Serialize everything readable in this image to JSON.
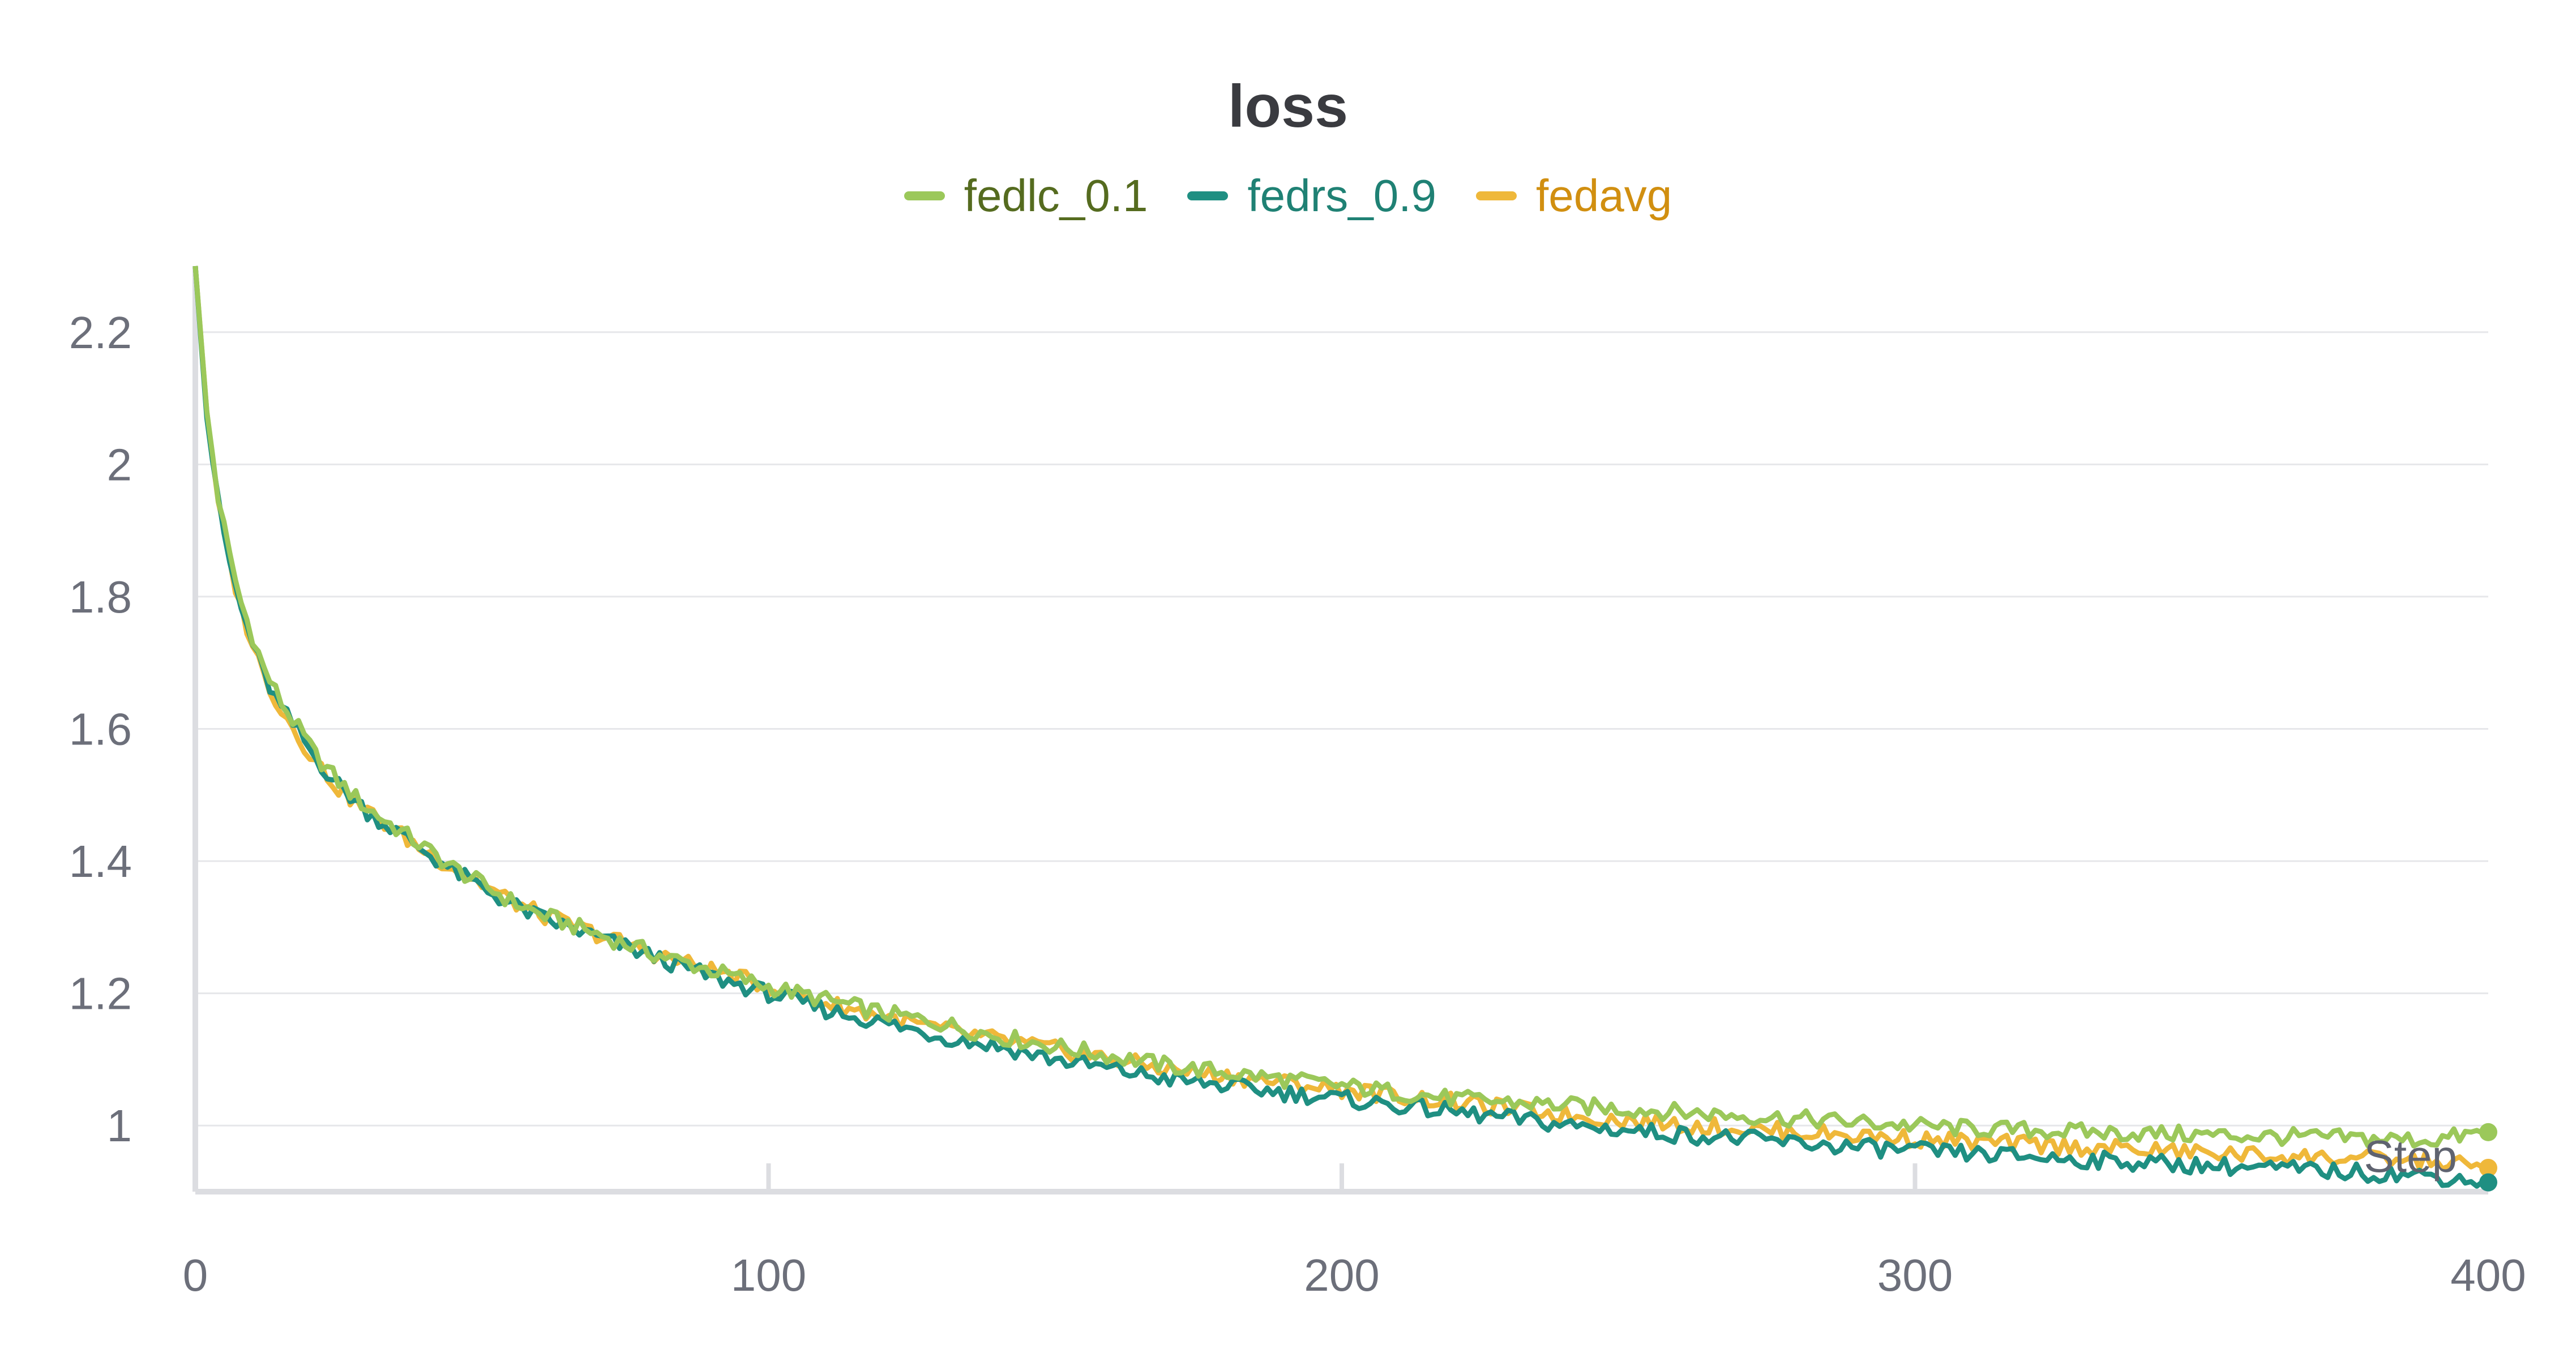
{
  "chart_data": {
    "type": "line",
    "title": "loss",
    "xlabel": "Step",
    "ylabel": "",
    "xlim": [
      0,
      400
    ],
    "ylim": [
      0.9,
      2.3
    ],
    "x_ticks": [
      0,
      100,
      200,
      300,
      400
    ],
    "x_tick_labels": [
      "0",
      "100",
      "200",
      "300",
      "400"
    ],
    "y_ticks": [
      1,
      1.2,
      1.4,
      1.6,
      1.8,
      2,
      2.2
    ],
    "y_tick_labels": [
      "1",
      "1.2",
      "1.4",
      "1.6",
      "1.8",
      "2",
      "2.2"
    ],
    "grid": true,
    "legend_position": "top-center",
    "x": [
      0,
      2,
      4,
      6,
      8,
      10,
      12,
      15,
      18,
      21,
      25,
      30,
      35,
      40,
      45,
      50,
      55,
      60,
      70,
      80,
      90,
      100,
      110,
      120,
      130,
      140,
      150,
      160,
      170,
      180,
      190,
      200,
      210,
      220,
      230,
      240,
      250,
      260,
      270,
      280,
      290,
      300,
      310,
      320,
      330,
      340,
      350,
      360,
      370,
      380,
      390,
      400
    ],
    "series": [
      {
        "name": "fedlc_0.1",
        "color": "#9bc85a",
        "label_color": "#556b1f",
        "values": [
          2.3,
          2.08,
          1.95,
          1.86,
          1.79,
          1.74,
          1.69,
          1.64,
          1.6,
          1.56,
          1.52,
          1.48,
          1.45,
          1.42,
          1.39,
          1.365,
          1.34,
          1.32,
          1.29,
          1.26,
          1.235,
          1.21,
          1.19,
          1.17,
          1.155,
          1.135,
          1.12,
          1.105,
          1.09,
          1.08,
          1.07,
          1.06,
          1.05,
          1.04,
          1.035,
          1.03,
          1.025,
          1.02,
          1.015,
          1.01,
          1.005,
          1.0,
          0.995,
          0.993,
          0.99,
          0.988,
          0.986,
          0.984,
          0.982,
          0.98,
          0.978,
          0.99
        ]
      },
      {
        "name": "fedrs_0.9",
        "color": "#1f8f82",
        "label_color": "#1f8174",
        "values": [
          2.3,
          2.07,
          1.94,
          1.85,
          1.78,
          1.73,
          1.68,
          1.63,
          1.595,
          1.555,
          1.515,
          1.475,
          1.445,
          1.415,
          1.385,
          1.36,
          1.335,
          1.315,
          1.285,
          1.255,
          1.225,
          1.2,
          1.175,
          1.155,
          1.135,
          1.12,
          1.1,
          1.085,
          1.07,
          1.06,
          1.05,
          1.04,
          1.03,
          1.02,
          1.01,
          1.0,
          0.993,
          0.986,
          0.98,
          0.973,
          0.967,
          0.962,
          0.957,
          0.953,
          0.948,
          0.944,
          0.94,
          0.936,
          0.932,
          0.928,
          0.924,
          0.914
        ]
      },
      {
        "name": "fedavg",
        "color": "#efb83a",
        "label_color": "#d18f10",
        "values": [
          2.3,
          2.08,
          1.94,
          1.85,
          1.78,
          1.73,
          1.68,
          1.63,
          1.59,
          1.55,
          1.51,
          1.475,
          1.445,
          1.415,
          1.39,
          1.365,
          1.34,
          1.32,
          1.29,
          1.26,
          1.235,
          1.21,
          1.185,
          1.165,
          1.145,
          1.13,
          1.115,
          1.1,
          1.085,
          1.075,
          1.065,
          1.055,
          1.045,
          1.035,
          1.025,
          1.015,
          1.008,
          1.001,
          0.995,
          0.99,
          0.985,
          0.98,
          0.975,
          0.971,
          0.967,
          0.963,
          0.959,
          0.955,
          0.952,
          0.949,
          0.946,
          0.936
        ]
      }
    ]
  }
}
